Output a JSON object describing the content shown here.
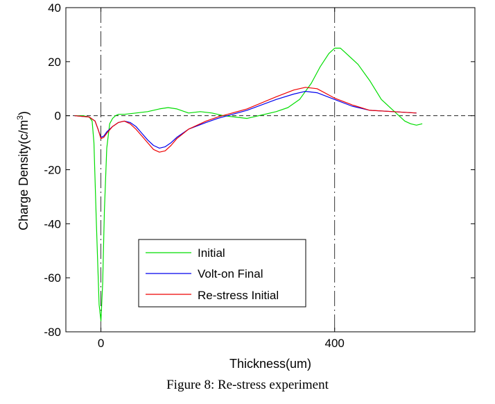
{
  "chart_data": {
    "type": "line",
    "xlabel": "Thickness(um)",
    "ylabel": "Charge Density(c/m",
    "ylabel_superscript": "3",
    "ylabel_suffix": ")",
    "xlim": [
      -60,
      640
    ],
    "ylim": [
      -80,
      40
    ],
    "xticks": [
      0,
      400
    ],
    "xtick_labels": [
      "0",
      "400"
    ],
    "yticks": [
      -80,
      -60,
      -40,
      -20,
      0,
      20,
      40
    ],
    "ytick_labels": [
      "-80",
      "-60",
      "-40",
      "-20",
      "0",
      "20",
      "40"
    ],
    "reference_lines": {
      "horizontal_dashed_y": 0,
      "vertical_dashdot_x": [
        0,
        400
      ]
    },
    "legend_position": "lower-center",
    "series": [
      {
        "name": "Initial",
        "color": "#00dd00",
        "x": [
          -45,
          -30,
          -20,
          -15,
          -12,
          -8,
          -5,
          -3,
          0,
          3,
          6,
          10,
          15,
          20,
          25,
          30,
          40,
          60,
          80,
          100,
          115,
          130,
          150,
          170,
          190,
          210,
          230,
          250,
          270,
          300,
          320,
          340,
          360,
          375,
          390,
          400,
          410,
          420,
          440,
          460,
          480,
          500,
          520,
          530,
          540,
          550
        ],
        "y": [
          0,
          0,
          -0.5,
          -2,
          -10,
          -38,
          -58,
          -70,
          -76,
          -62,
          -35,
          -12,
          -3,
          -1,
          0,
          0.5,
          0.5,
          1,
          1.5,
          2.5,
          3,
          2.5,
          1,
          1.5,
          1,
          0,
          -0.5,
          -1,
          0,
          1.5,
          3,
          6,
          12,
          18,
          23,
          25,
          25,
          23,
          19,
          13,
          6,
          2,
          -2,
          -3,
          -3.5,
          -3
        ]
      },
      {
        "name": "Volt-on Final",
        "color": "#0000ee",
        "x": [
          -45,
          -20,
          -10,
          -5,
          0,
          5,
          10,
          20,
          30,
          40,
          50,
          60,
          70,
          80,
          90,
          100,
          110,
          120,
          130,
          150,
          180,
          200,
          250,
          300,
          330,
          350,
          370,
          400,
          430,
          460,
          500,
          540
        ],
        "y": [
          0,
          -0.5,
          -2,
          -5,
          -8,
          -7.5,
          -6,
          -4,
          -2.5,
          -2,
          -2.5,
          -4,
          -6.5,
          -9,
          -11,
          -12,
          -11.5,
          -10,
          -8,
          -5,
          -2.5,
          -1,
          2,
          6,
          8,
          9,
          8.5,
          6,
          3.5,
          2,
          1.5,
          1
        ]
      },
      {
        "name": "Re-stress Initial",
        "color": "#ee0000",
        "x": [
          -45,
          -20,
          -10,
          -5,
          0,
          5,
          10,
          20,
          30,
          40,
          50,
          60,
          70,
          80,
          90,
          100,
          110,
          120,
          130,
          150,
          180,
          200,
          250,
          300,
          330,
          350,
          370,
          400,
          430,
          460,
          500,
          540
        ],
        "y": [
          0,
          -0.5,
          -2,
          -5,
          -8.5,
          -8,
          -6.5,
          -4,
          -2.5,
          -2,
          -3,
          -5,
          -7.5,
          -10,
          -12.5,
          -13.5,
          -13,
          -11,
          -8.5,
          -5,
          -2,
          -0.5,
          2.5,
          7,
          9.5,
          10.5,
          10,
          6.5,
          4,
          2,
          1.5,
          1
        ]
      }
    ]
  },
  "caption": "Figure 8: Re-stress experiment"
}
